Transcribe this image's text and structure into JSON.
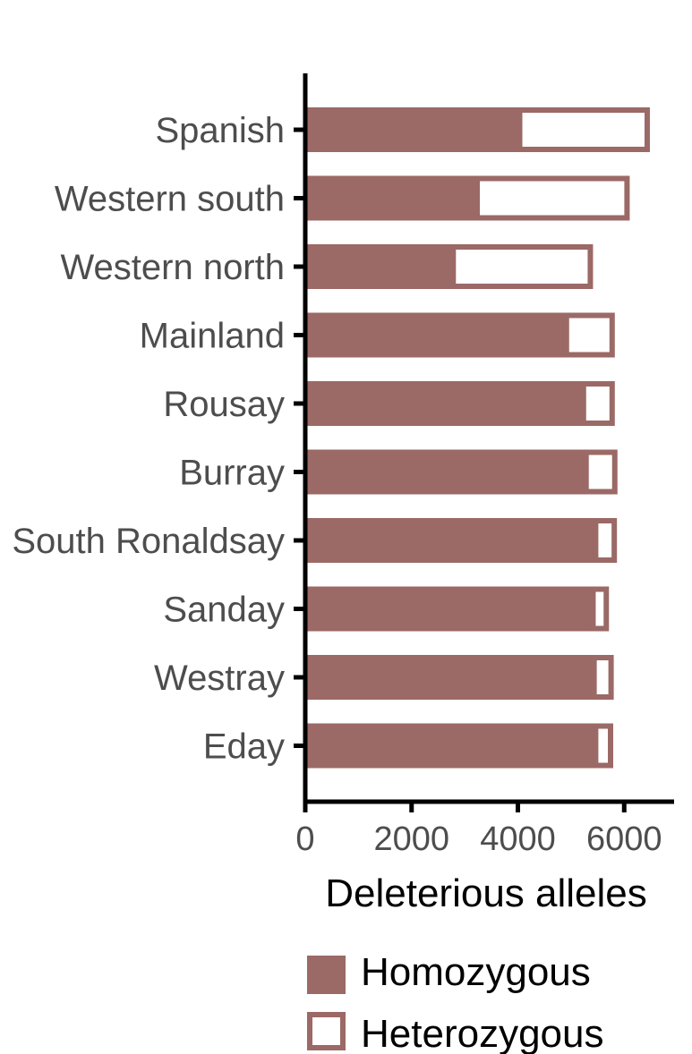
{
  "chart_data": {
    "type": "bar",
    "orientation": "horizontal",
    "stacked": true,
    "categories": [
      "Spanish",
      "Western south",
      "Western north",
      "Mainland",
      "Rousay",
      "Burray",
      "South Ronaldsay",
      "Sanday",
      "Westray",
      "Eday"
    ],
    "series": [
      {
        "name": "Homozygous",
        "values": [
          4000,
          3200,
          2750,
          4880,
          5200,
          5250,
          5430,
          5380,
          5400,
          5430
        ],
        "fill": "filled"
      },
      {
        "name": "Heterozygous",
        "values": [
          2450,
          2870,
          2630,
          910,
          590,
          590,
          400,
          300,
          370,
          330
        ],
        "fill": "outline"
      }
    ],
    "xlabel": "Deleterious alleles",
    "ylabel": "",
    "xlim": [
      0,
      6950
    ],
    "xticks": [
      "0",
      "2000",
      "4000",
      "6000"
    ],
    "grid": false,
    "legend": {
      "position": "bottom",
      "entries": [
        "Homozygous",
        "Heterozygous"
      ]
    },
    "colors": {
      "bar": "#9b6966",
      "axis": "#000000",
      "label": "#4d4d4d"
    }
  }
}
